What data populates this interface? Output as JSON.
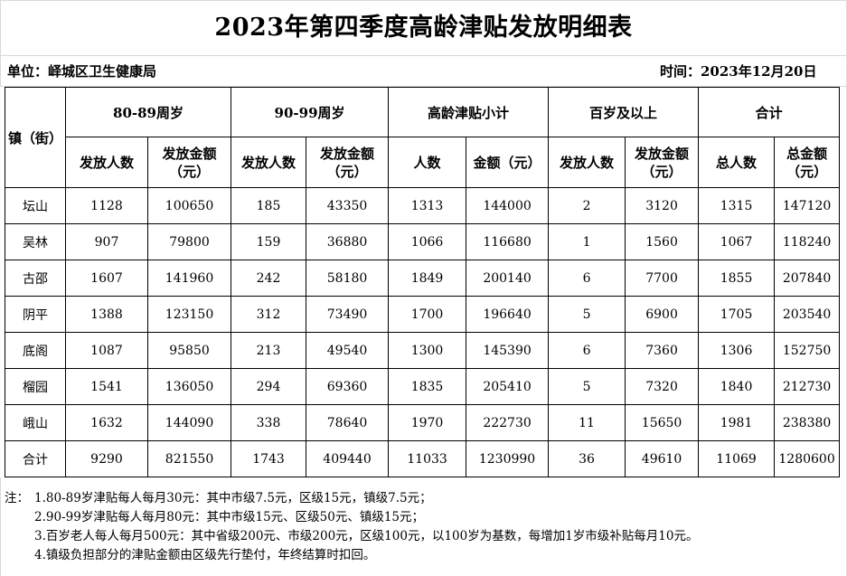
{
  "title": "2023年第四季度高龄津贴发放明细表",
  "unit": "单位：峄城区卫生健康局",
  "date": "时间：2023年12月20日",
  "table": {
    "town_header": "镇（街）",
    "groups": [
      "80-89周岁",
      "90-99周岁",
      "高龄津贴小计",
      "百岁及以上",
      "合计"
    ],
    "sub_headers": [
      [
        "发放人数"
      ],
      [
        "发放金额",
        "（元）"
      ],
      [
        "发放人数"
      ],
      [
        "发放金额",
        "（元）"
      ],
      [
        "人数"
      ],
      [
        "金额（元）"
      ],
      [
        "发放人数"
      ],
      [
        "发放金额",
        "（元）"
      ],
      [
        "总人数"
      ],
      [
        "总金额",
        "（元）"
      ]
    ],
    "rows": [
      {
        "town": "坛山",
        "cells": [
          "1128",
          "100650",
          "185",
          "43350",
          "1313",
          "144000",
          "2",
          "3120",
          "1315",
          "147120"
        ]
      },
      {
        "town": "吴林",
        "cells": [
          "907",
          "79800",
          "159",
          "36880",
          "1066",
          "116680",
          "1",
          "1560",
          "1067",
          "118240"
        ]
      },
      {
        "town": "古邵",
        "cells": [
          "1607",
          "141960",
          "242",
          "58180",
          "1849",
          "200140",
          "6",
          "7700",
          "1855",
          "207840"
        ]
      },
      {
        "town": "阴平",
        "cells": [
          "1388",
          "123150",
          "312",
          "73490",
          "1700",
          "196640",
          "5",
          "6900",
          "1705",
          "203540"
        ]
      },
      {
        "town": "底阁",
        "cells": [
          "1087",
          "95850",
          "213",
          "49540",
          "1300",
          "145390",
          "6",
          "7360",
          "1306",
          "152750"
        ]
      },
      {
        "town": "榴园",
        "cells": [
          "1541",
          "136050",
          "294",
          "69360",
          "1835",
          "205410",
          "5",
          "7320",
          "1840",
          "212730"
        ]
      },
      {
        "town": "峨山",
        "cells": [
          "1632",
          "144090",
          "338",
          "78640",
          "1970",
          "222730",
          "11",
          "15650",
          "1981",
          "238380"
        ]
      },
      {
        "town": "合计",
        "cells": [
          "9290",
          "821550",
          "1743",
          "409440",
          "11033",
          "1230990",
          "36",
          "49610",
          "11069",
          "1280600"
        ]
      }
    ]
  },
  "notes": {
    "prefix": "注：",
    "items": [
      "1.80-89岁津贴每人每月30元：其中市级7.5元，区级15元，镇级7.5元；",
      "2.90-99岁津贴每人每月80元：其中市级15元、区级50元、镇级15元；",
      "3.百岁老人每人每月500元：其中省级200元、市级200元，区级100元，以100岁为基数，每增加1岁市级补贴每月10元。",
      "4.镇级负担部分的津贴金额由区级先行垫付，年终结算时扣回。"
    ]
  }
}
